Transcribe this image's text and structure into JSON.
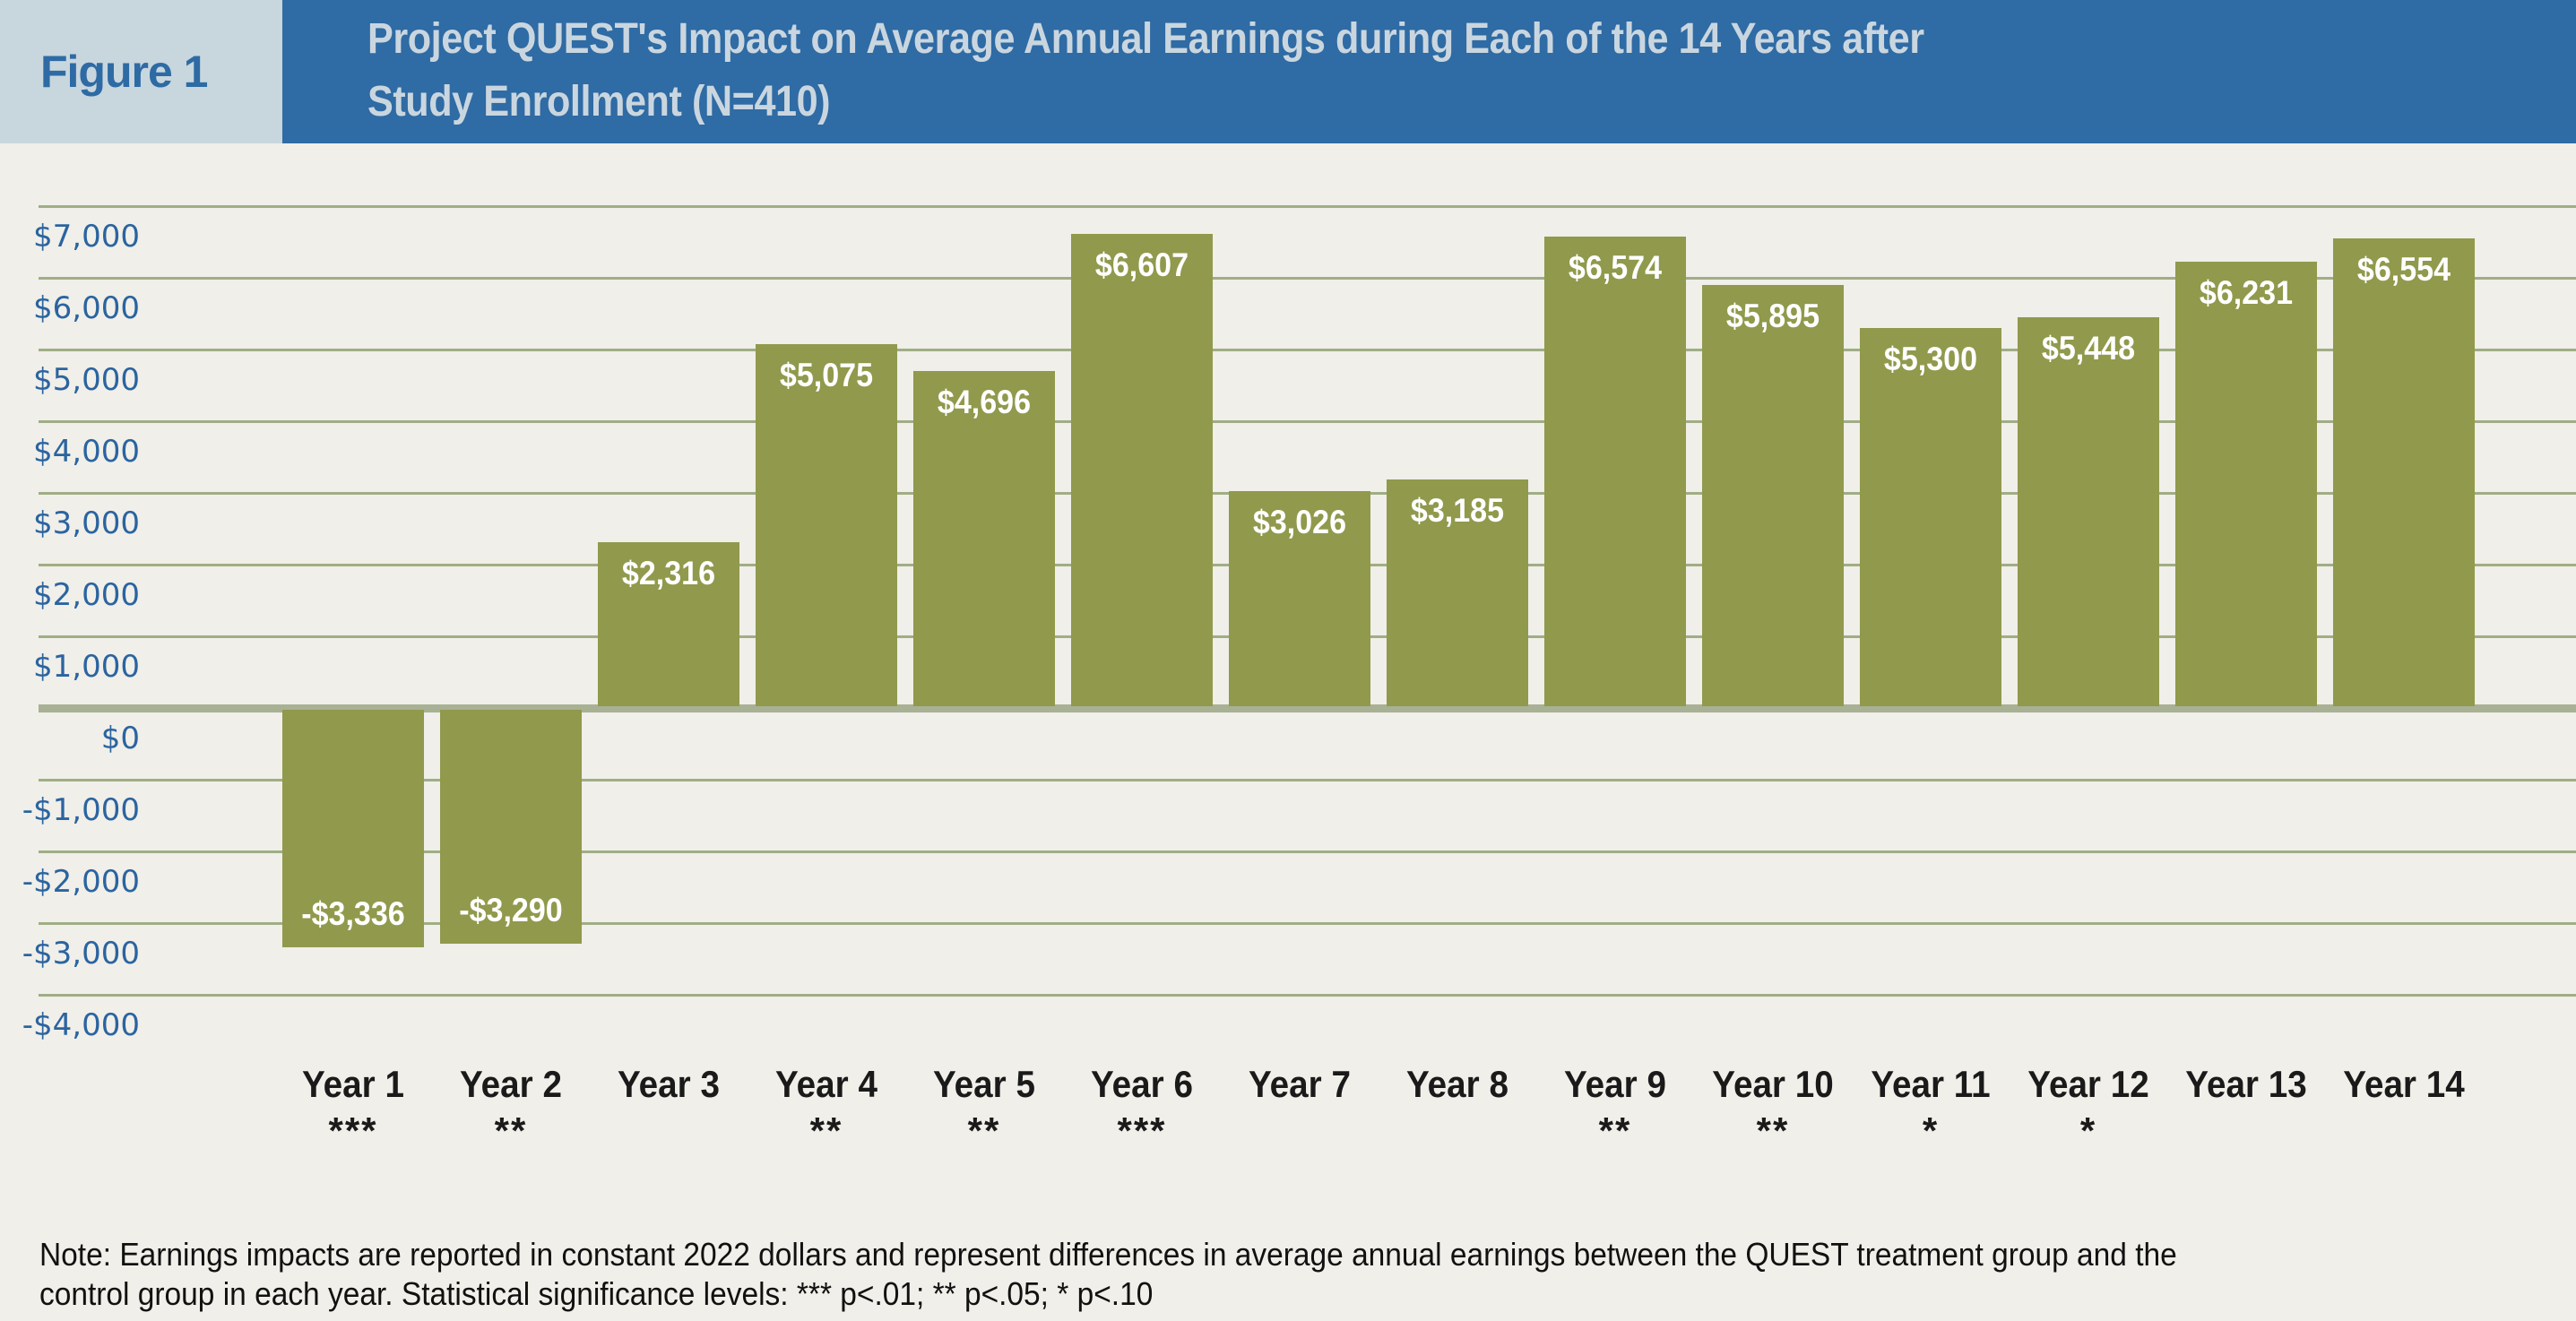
{
  "header": {
    "figure_label": "Figure 1",
    "title_lines": [
      "Project QUEST's Impact on Average Annual Earnings during Each of the 14 Years after",
      "Study Enrollment (N=410)"
    ]
  },
  "note_lines": [
    "Note: Earnings impacts are reported in constant 2022 dollars and represent differences in average annual earnings between the QUEST treatment group and the",
    "control group in each year. Statistical significance levels: *** p<.01; ** p<.05; * p<.10"
  ],
  "chart_data": {
    "type": "bar",
    "title": "Project QUEST's Impact on Average Annual Earnings during Each of the 14 Years after Study Enrollment (N=410)",
    "sample": "N=410",
    "categories": [
      "Year 1",
      "Year 2",
      "Year 3",
      "Year 4",
      "Year 5",
      "Year 6",
      "Year 7",
      "Year 8",
      "Year 9",
      "Year 10",
      "Year 11",
      "Year 12",
      "Year 13",
      "Year 14"
    ],
    "values": [
      -3336,
      -3290,
      2316,
      5075,
      4696,
      6607,
      3026,
      3185,
      6574,
      5895,
      5300,
      5448,
      6231,
      6554
    ],
    "value_labels": [
      "-$3,336",
      "-$3,290",
      "$2,316",
      "$5,075",
      "$4,696",
      "$6,607",
      "$3,026",
      "$3,185",
      "$6,574",
      "$5,895",
      "$5,300",
      "$5,448",
      "$6,231",
      "$6,554"
    ],
    "significance": [
      "***",
      "**",
      "",
      "**",
      "**",
      "***",
      "",
      "",
      "**",
      "**",
      "*",
      "*",
      "",
      ""
    ],
    "y_ticks": [
      "$7,000",
      "$6,000",
      "$5,000",
      "$4,000",
      "$3,000",
      "$2,000",
      "$1,000",
      "$0",
      "-$1,000",
      "-$2,000",
      "-$3,000",
      "-$4,000"
    ],
    "y_tick_values": [
      7000,
      6000,
      5000,
      4000,
      3000,
      2000,
      1000,
      0,
      -1000,
      -2000,
      -3000,
      -4000
    ],
    "ylim": [
      -4000,
      7000
    ],
    "xlabel": "",
    "ylabel": "",
    "grid": "horizontal",
    "legend": "none",
    "significance_note": "*** p<.01; ** p<.05; * p<.10"
  },
  "colors": {
    "background": "#f0efe9",
    "header_bg": "#2f6ba4",
    "figure_box_bg": "#c8d6de",
    "figure_text": "#2e6ba4",
    "title_text": "#cad6df",
    "axis_label": "#2b64a0",
    "gridline": "#a0ad85",
    "zero_line": "#a8b194",
    "bar": "#91994c",
    "bar_label": "#ffffff",
    "x_label": "#1a1a1a",
    "note_text": "#111111"
  }
}
